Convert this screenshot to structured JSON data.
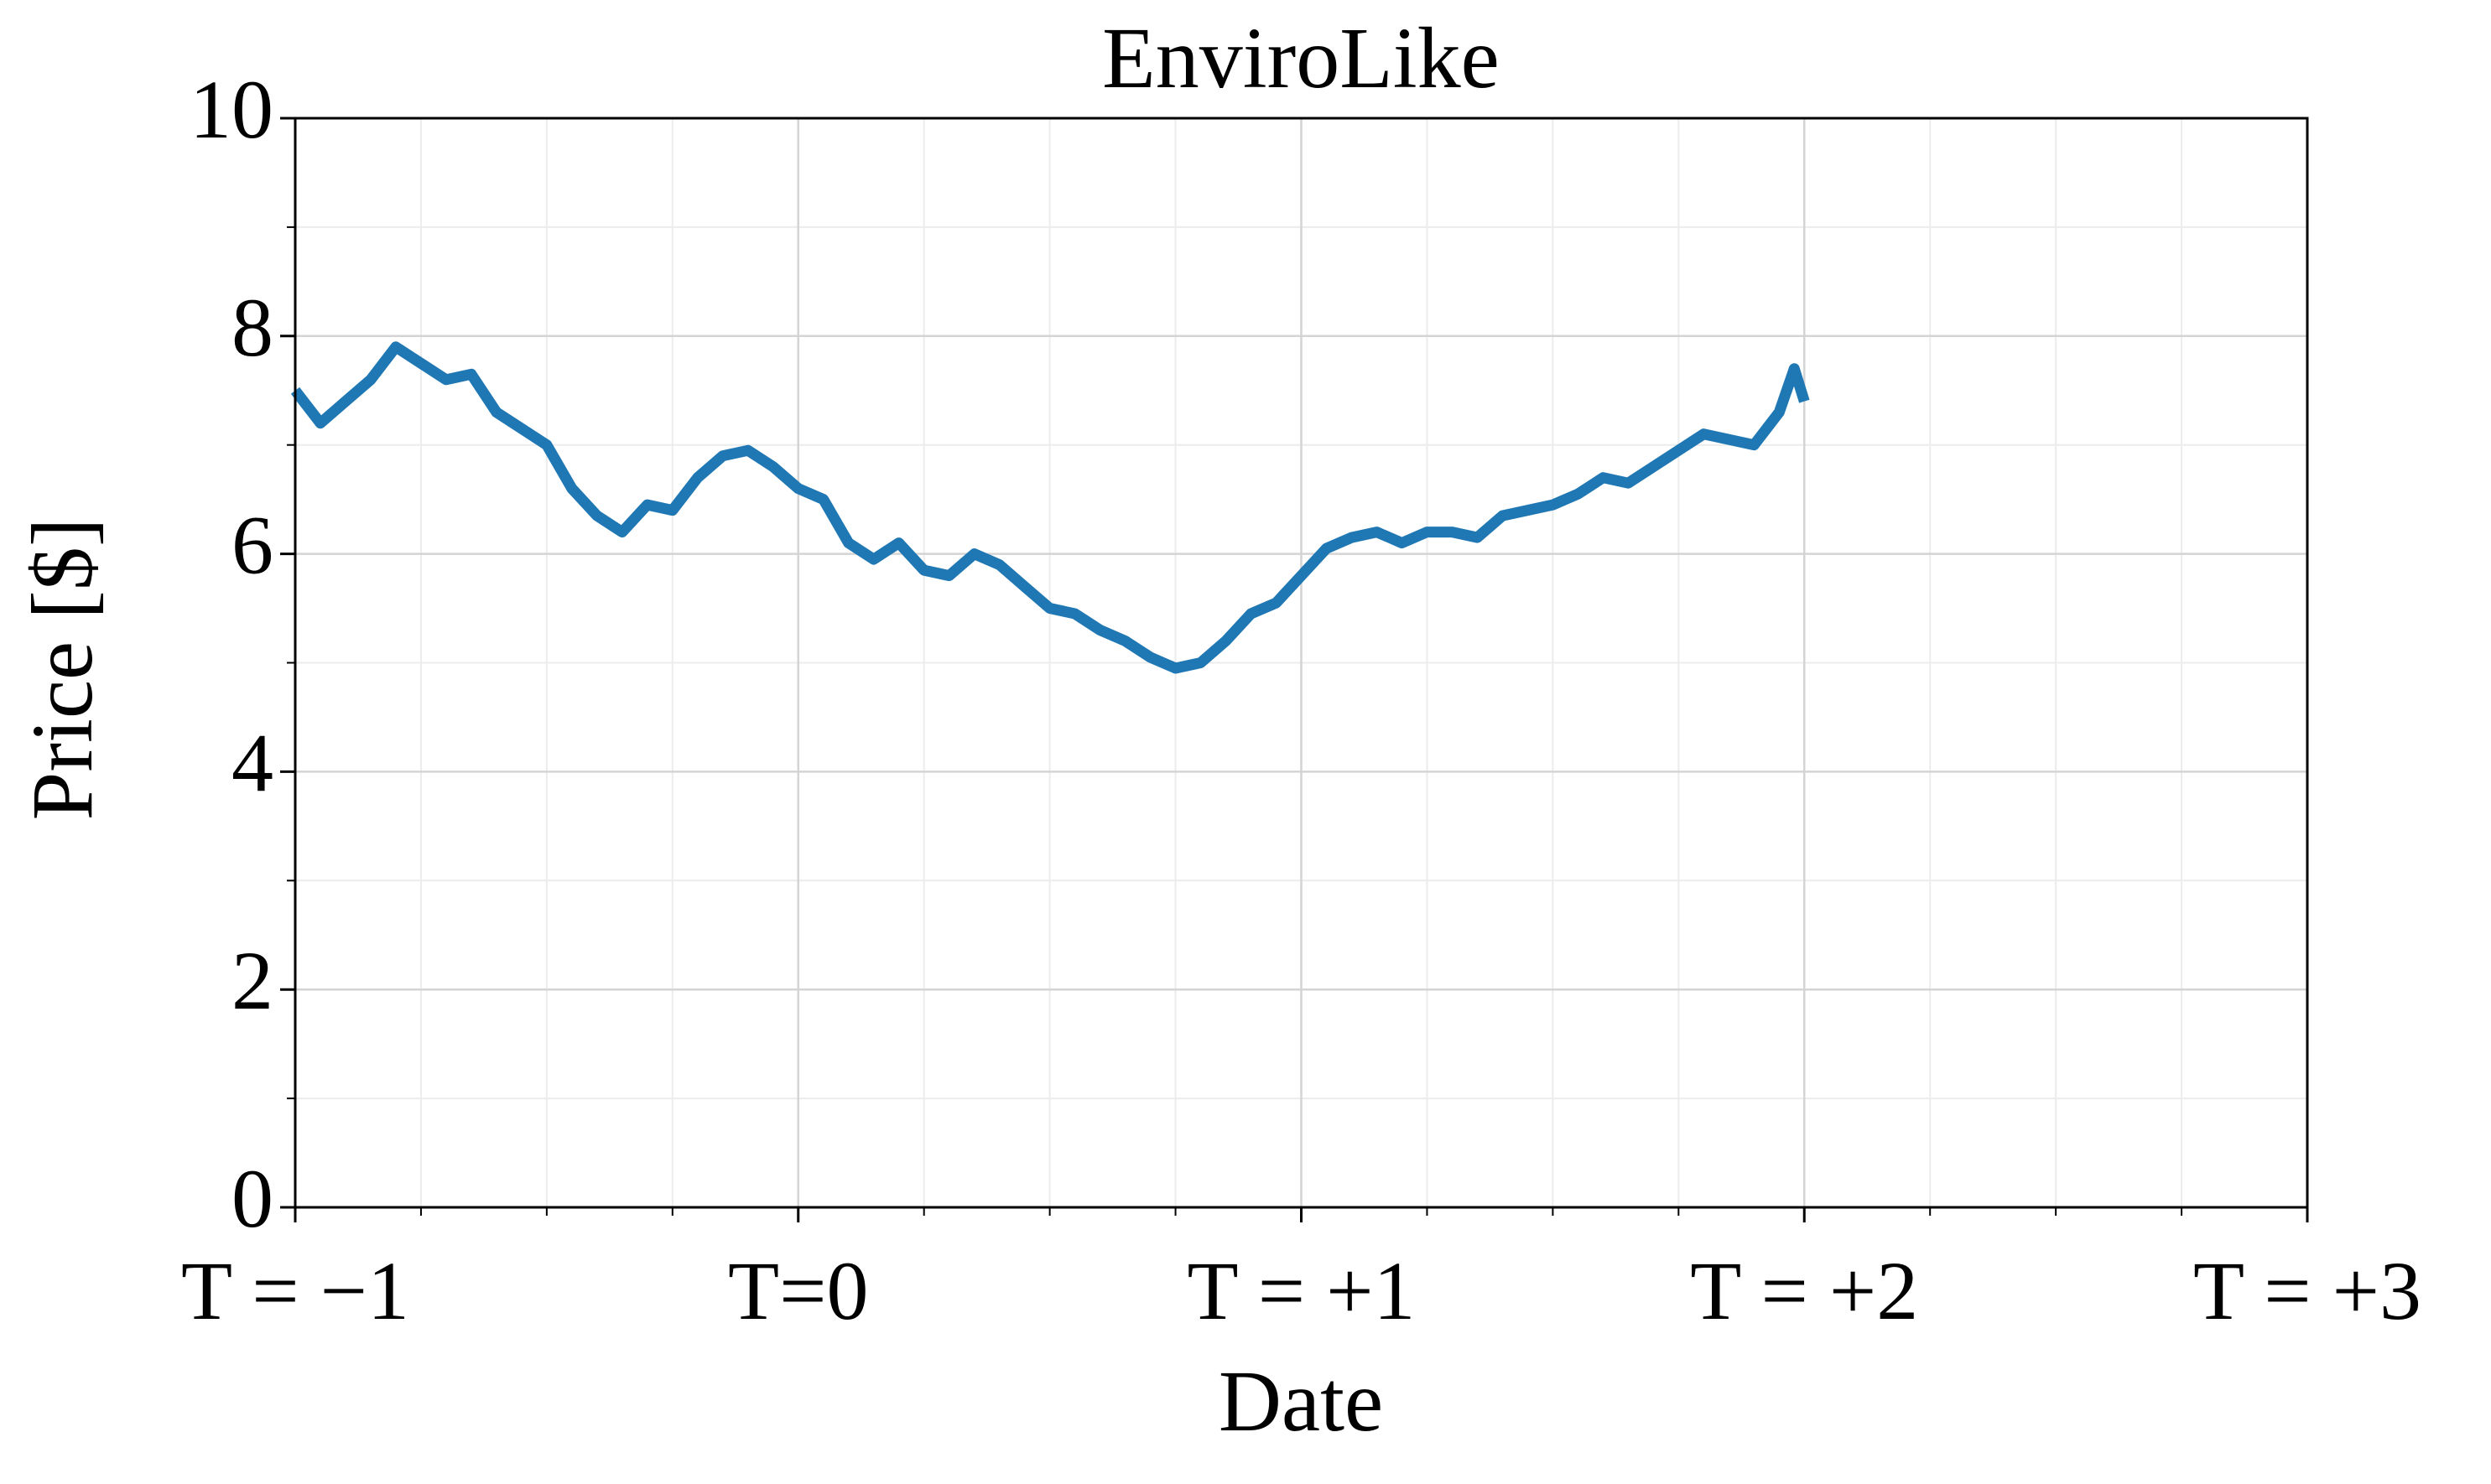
{
  "chart_data": {
    "type": "line",
    "title": "EnviroLike",
    "xlabel": "Date",
    "ylabel": "Price [$]",
    "x": [
      -1.0,
      -0.95,
      -0.9,
      -0.85,
      -0.8,
      -0.75,
      -0.7,
      -0.65,
      -0.6,
      -0.55,
      -0.5,
      -0.45,
      -0.4,
      -0.35,
      -0.3,
      -0.25,
      -0.2,
      -0.15,
      -0.1,
      -0.05,
      0.0,
      0.05,
      0.1,
      0.15,
      0.2,
      0.25,
      0.3,
      0.35,
      0.4,
      0.45,
      0.5,
      0.55,
      0.6,
      0.65,
      0.7,
      0.75,
      0.8,
      0.85,
      0.9,
      0.95,
      1.0,
      1.05,
      1.1,
      1.15,
      1.2,
      1.25,
      1.3,
      1.35,
      1.4,
      1.45,
      1.5,
      1.55,
      1.6,
      1.65,
      1.7,
      1.75,
      1.8,
      1.85,
      1.9,
      1.95,
      1.98,
      2.0
    ],
    "values": [
      7.5,
      7.2,
      7.4,
      7.6,
      7.9,
      7.75,
      7.6,
      7.65,
      7.3,
      7.15,
      7.0,
      6.6,
      6.35,
      6.2,
      6.45,
      6.4,
      6.7,
      6.9,
      6.95,
      6.8,
      6.6,
      6.5,
      6.1,
      5.95,
      6.1,
      5.85,
      5.8,
      6.0,
      5.9,
      5.7,
      5.5,
      5.45,
      5.3,
      5.2,
      5.05,
      4.95,
      5.0,
      5.2,
      5.45,
      5.55,
      5.8,
      6.05,
      6.15,
      6.2,
      6.1,
      6.2,
      6.2,
      6.15,
      6.35,
      6.4,
      6.45,
      6.55,
      6.7,
      6.65,
      6.8,
      6.95,
      7.1,
      7.05,
      7.0,
      7.3,
      7.7,
      7.4
    ],
    "color": "#1f77b4",
    "xlim": [
      -1,
      3
    ],
    "xticks": [
      {
        "value": -1,
        "label": "T = −1"
      },
      {
        "value": 0,
        "label": "T=0"
      },
      {
        "value": 1,
        "label": "T = +1"
      },
      {
        "value": 2,
        "label": "T = +2"
      },
      {
        "value": 3,
        "label": "T = +3"
      }
    ],
    "ylim": [
      0,
      10
    ],
    "yticks": [
      0,
      2,
      4,
      6,
      8,
      10
    ],
    "grid": true,
    "x_minor_divisions": 4,
    "y_minor_divisions": 2
  }
}
